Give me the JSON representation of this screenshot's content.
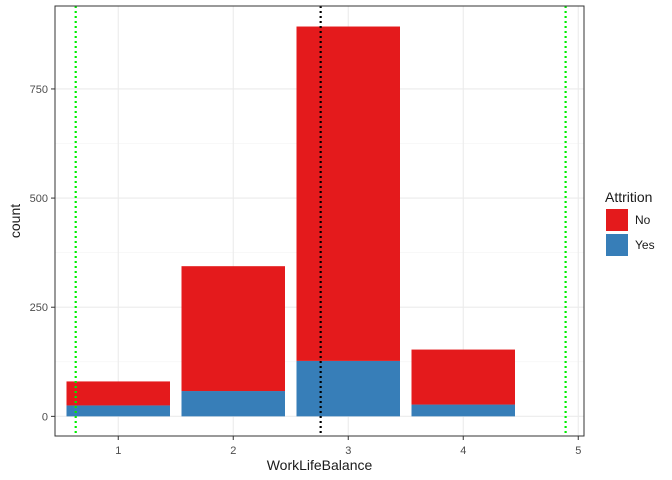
{
  "chart_data": {
    "type": "bar",
    "stacked": true,
    "xlabel": "WorkLifeBalance",
    "ylabel": "count",
    "categories": [
      1,
      2,
      3,
      4
    ],
    "x_ticks": [
      1,
      2,
      3,
      4,
      5
    ],
    "y_ticks": [
      0,
      250,
      500,
      750
    ],
    "xlim": [
      0.45,
      5.05
    ],
    "ylim": [
      -45,
      940
    ],
    "series": [
      {
        "name": "Yes",
        "color": "#377eb8",
        "values": [
          25,
          58,
          127,
          27
        ]
      },
      {
        "name": "No",
        "color": "#e41a1c",
        "values": [
          55,
          286,
          766,
          126
        ]
      }
    ],
    "legend": {
      "title": "Attrition",
      "placement": "right",
      "order": [
        "No",
        "Yes"
      ]
    },
    "reference_lines": [
      {
        "x": 0.63,
        "color": "#00ee00",
        "style": "dotted"
      },
      {
        "x": 4.89,
        "color": "#00ee00",
        "style": "dotted"
      },
      {
        "x": 2.76,
        "color": "#000000",
        "style": "dotted"
      }
    ],
    "grid": true
  }
}
